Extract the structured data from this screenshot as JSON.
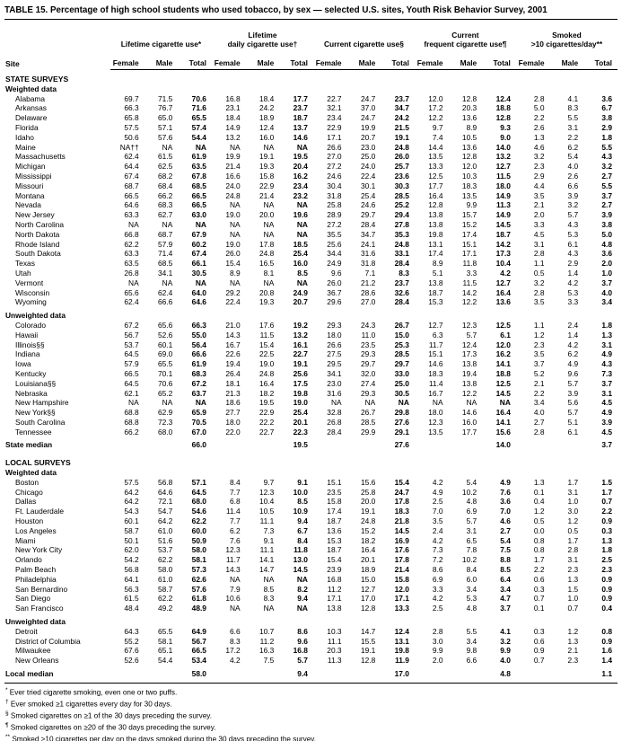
{
  "title": "TABLE 15. Percentage of high school students who used tobacco, by sex — selected U.S. sites, Youth Risk Behavior Survey, 2001",
  "header": {
    "site_label": "Site",
    "sub": [
      "Female",
      "Male",
      "Total"
    ],
    "groups": [
      {
        "line1": "",
        "line2": "Lifetime cigarette use*"
      },
      {
        "line1": "Lifetime",
        "line2": "daily cigarette use†"
      },
      {
        "line1": "",
        "line2": "Current cigarette use§"
      },
      {
        "line1": "Current",
        "line2": "frequent cigarette use¶"
      },
      {
        "line1": "Smoked",
        "line2": ">10 cigarettes/day**"
      }
    ]
  },
  "rows": [
    {
      "t": "sec",
      "site": "STATE SURVEYS"
    },
    {
      "t": "sub",
      "site": "Weighted data"
    },
    {
      "t": "d",
      "site": "Alabama",
      "v": [
        "69.7",
        "71.5",
        "70.6",
        "16.8",
        "18.4",
        "17.7",
        "22.7",
        "24.7",
        "23.7",
        "12.0",
        "12.8",
        "12.4",
        "2.8",
        "4.1",
        "3.6"
      ]
    },
    {
      "t": "d",
      "site": "Arkansas",
      "v": [
        "66.3",
        "76.7",
        "71.6",
        "23.1",
        "24.2",
        "23.7",
        "32.1",
        "37.0",
        "34.7",
        "17.2",
        "20.3",
        "18.8",
        "5.0",
        "8.3",
        "6.7"
      ]
    },
    {
      "t": "d",
      "site": "Delaware",
      "v": [
        "65.8",
        "65.0",
        "65.5",
        "18.4",
        "18.9",
        "18.7",
        "23.4",
        "24.7",
        "24.2",
        "12.2",
        "13.6",
        "12.8",
        "2.2",
        "5.5",
        "3.8"
      ]
    },
    {
      "t": "d",
      "site": "Florida",
      "v": [
        "57.5",
        "57.1",
        "57.4",
        "14.9",
        "12.4",
        "13.7",
        "22.9",
        "19.9",
        "21.5",
        "9.7",
        "8.9",
        "9.3",
        "2.6",
        "3.1",
        "2.9"
      ]
    },
    {
      "t": "d",
      "site": "Idaho",
      "v": [
        "50.6",
        "57.6",
        "54.4",
        "13.2",
        "16.0",
        "14.6",
        "17.1",
        "20.7",
        "19.1",
        "7.4",
        "10.5",
        "9.0",
        "1.3",
        "2.2",
        "1.8"
      ]
    },
    {
      "t": "d",
      "site": "Maine",
      "v": [
        "NA††",
        "NA",
        "NA",
        "NA",
        "NA",
        "NA",
        "26.6",
        "23.0",
        "24.8",
        "14.4",
        "13.6",
        "14.0",
        "4.6",
        "6.2",
        "5.5"
      ]
    },
    {
      "t": "d",
      "site": "Massachusetts",
      "v": [
        "62.4",
        "61.5",
        "61.9",
        "19.9",
        "19.1",
        "19.5",
        "27.0",
        "25.0",
        "26.0",
        "13.5",
        "12.8",
        "13.2",
        "3.2",
        "5.4",
        "4.3"
      ]
    },
    {
      "t": "d",
      "site": "Michigan",
      "v": [
        "64.4",
        "62.5",
        "63.5",
        "21.4",
        "19.3",
        "20.4",
        "27.2",
        "24.0",
        "25.7",
        "13.3",
        "12.0",
        "12.7",
        "2.3",
        "4.0",
        "3.2"
      ]
    },
    {
      "t": "d",
      "site": "Mississippi",
      "v": [
        "67.4",
        "68.2",
        "67.8",
        "16.6",
        "15.8",
        "16.2",
        "24.6",
        "22.4",
        "23.6",
        "12.5",
        "10.3",
        "11.5",
        "2.9",
        "2.6",
        "2.7"
      ]
    },
    {
      "t": "d",
      "site": "Missouri",
      "v": [
        "68.7",
        "68.4",
        "68.5",
        "24.0",
        "22.9",
        "23.4",
        "30.4",
        "30.1",
        "30.3",
        "17.7",
        "18.3",
        "18.0",
        "4.4",
        "6.6",
        "5.5"
      ]
    },
    {
      "t": "d",
      "site": "Montana",
      "v": [
        "66.5",
        "66.2",
        "66.5",
        "24.8",
        "21.4",
        "23.2",
        "31.8",
        "25.4",
        "28.5",
        "16.4",
        "13.5",
        "14.9",
        "3.5",
        "3.9",
        "3.7"
      ]
    },
    {
      "t": "d",
      "site": "Nevada",
      "v": [
        "64.6",
        "68.3",
        "66.5",
        "NA",
        "NA",
        "NA",
        "25.8",
        "24.6",
        "25.2",
        "12.8",
        "9.9",
        "11.3",
        "2.1",
        "3.2",
        "2.7"
      ]
    },
    {
      "t": "d",
      "site": "New Jersey",
      "v": [
        "63.3",
        "62.7",
        "63.0",
        "19.0",
        "20.0",
        "19.6",
        "28.9",
        "29.7",
        "29.4",
        "13.8",
        "15.7",
        "14.9",
        "2.0",
        "5.7",
        "3.9"
      ]
    },
    {
      "t": "d",
      "site": "North Carolina",
      "v": [
        "NA",
        "NA",
        "NA",
        "NA",
        "NA",
        "NA",
        "27.2",
        "28.4",
        "27.8",
        "13.8",
        "15.2",
        "14.5",
        "3.3",
        "4.3",
        "3.8"
      ]
    },
    {
      "t": "d",
      "site": "North Dakota",
      "v": [
        "66.8",
        "68.7",
        "67.9",
        "NA",
        "NA",
        "NA",
        "35.5",
        "34.7",
        "35.3",
        "19.8",
        "17.4",
        "18.7",
        "4.5",
        "5.3",
        "5.0"
      ]
    },
    {
      "t": "d",
      "site": "Rhode Island",
      "v": [
        "62.2",
        "57.9",
        "60.2",
        "19.0",
        "17.8",
        "18.5",
        "25.6",
        "24.1",
        "24.8",
        "13.1",
        "15.1",
        "14.2",
        "3.1",
        "6.1",
        "4.8"
      ]
    },
    {
      "t": "d",
      "site": "South Dakota",
      "v": [
        "63.3",
        "71.4",
        "67.4",
        "26.0",
        "24.8",
        "25.4",
        "34.4",
        "31.6",
        "33.1",
        "17.4",
        "17.1",
        "17.3",
        "2.8",
        "4.3",
        "3.6"
      ]
    },
    {
      "t": "d",
      "site": "Texas",
      "v": [
        "63.5",
        "68.5",
        "66.1",
        "15.4",
        "16.5",
        "16.0",
        "24.9",
        "31.8",
        "28.4",
        "8.9",
        "11.8",
        "10.4",
        "1.1",
        "2.9",
        "2.0"
      ]
    },
    {
      "t": "d",
      "site": "Utah",
      "v": [
        "26.8",
        "34.1",
        "30.5",
        "8.9",
        "8.1",
        "8.5",
        "9.6",
        "7.1",
        "8.3",
        "5.1",
        "3.3",
        "4.2",
        "0.5",
        "1.4",
        "1.0"
      ]
    },
    {
      "t": "d",
      "site": "Vermont",
      "v": [
        "NA",
        "NA",
        "NA",
        "NA",
        "NA",
        "NA",
        "26.0",
        "21.2",
        "23.7",
        "13.8",
        "11.5",
        "12.7",
        "3.2",
        "4.2",
        "3.7"
      ]
    },
    {
      "t": "d",
      "site": "Wisconsin",
      "v": [
        "65.6",
        "62.4",
        "64.0",
        "29.2",
        "20.8",
        "24.9",
        "36.7",
        "28.6",
        "32.6",
        "18.7",
        "14.2",
        "16.4",
        "2.8",
        "5.3",
        "4.0"
      ]
    },
    {
      "t": "d",
      "site": "Wyoming",
      "v": [
        "62.4",
        "66.6",
        "64.6",
        "22.4",
        "19.3",
        "20.7",
        "29.6",
        "27.0",
        "28.4",
        "15.3",
        "12.2",
        "13.6",
        "3.5",
        "3.3",
        "3.4"
      ]
    },
    {
      "t": "sub",
      "site": "Unweighted data"
    },
    {
      "t": "d",
      "site": "Colorado",
      "v": [
        "67.2",
        "65.6",
        "66.3",
        "21.0",
        "17.6",
        "19.2",
        "29.3",
        "24.3",
        "26.7",
        "12.7",
        "12.3",
        "12.5",
        "1.1",
        "2.4",
        "1.8"
      ]
    },
    {
      "t": "d",
      "site": "Hawaii",
      "v": [
        "56.7",
        "52.6",
        "55.0",
        "14.3",
        "11.5",
        "13.2",
        "18.0",
        "11.0",
        "15.0",
        "6.3",
        "5.7",
        "6.1",
        "1.2",
        "1.4",
        "1.3"
      ]
    },
    {
      "t": "d",
      "site": "Illinois§§",
      "v": [
        "53.7",
        "60.1",
        "56.4",
        "16.7",
        "15.4",
        "16.1",
        "26.6",
        "23.5",
        "25.3",
        "11.7",
        "12.4",
        "12.0",
        "2.3",
        "4.2",
        "3.1"
      ]
    },
    {
      "t": "d",
      "site": "Indiana",
      "v": [
        "64.5",
        "69.0",
        "66.6",
        "22.6",
        "22.5",
        "22.7",
        "27.5",
        "29.3",
        "28.5",
        "15.1",
        "17.3",
        "16.2",
        "3.5",
        "6.2",
        "4.9"
      ]
    },
    {
      "t": "d",
      "site": "Iowa",
      "v": [
        "57.9",
        "65.5",
        "61.9",
        "19.4",
        "19.0",
        "19.1",
        "29.5",
        "29.7",
        "29.7",
        "14.6",
        "13.8",
        "14.1",
        "3.7",
        "4.9",
        "4.3"
      ]
    },
    {
      "t": "d",
      "site": "Kentucky",
      "v": [
        "66.5",
        "70.1",
        "68.3",
        "26.4",
        "24.8",
        "25.6",
        "34.1",
        "32.0",
        "33.0",
        "18.3",
        "19.4",
        "18.8",
        "5.2",
        "9.6",
        "7.3"
      ]
    },
    {
      "t": "d",
      "site": "Louisiana§§",
      "v": [
        "64.5",
        "70.6",
        "67.2",
        "18.1",
        "16.4",
        "17.5",
        "23.0",
        "27.4",
        "25.0",
        "11.4",
        "13.8",
        "12.5",
        "2.1",
        "5.7",
        "3.7"
      ]
    },
    {
      "t": "d",
      "site": "Nebraska",
      "v": [
        "62.1",
        "65.2",
        "63.7",
        "21.3",
        "18.2",
        "19.8",
        "31.6",
        "29.3",
        "30.5",
        "16.7",
        "12.2",
        "14.5",
        "2.2",
        "3.9",
        "3.1"
      ]
    },
    {
      "t": "d",
      "site": "New Hampshire",
      "v": [
        "NA",
        "NA",
        "NA",
        "18.6",
        "19.5",
        "19.0",
        "NA",
        "NA",
        "NA",
        "NA",
        "NA",
        "NA",
        "3.4",
        "5.6",
        "4.5"
      ]
    },
    {
      "t": "d",
      "site": "New York§§",
      "v": [
        "68.8",
        "62.9",
        "65.9",
        "27.7",
        "22.9",
        "25.4",
        "32.8",
        "26.7",
        "29.8",
        "18.0",
        "14.6",
        "16.4",
        "4.0",
        "5.7",
        "4.9"
      ]
    },
    {
      "t": "d",
      "site": "South Carolina",
      "v": [
        "68.8",
        "72.3",
        "70.5",
        "18.0",
        "22.2",
        "20.1",
        "26.8",
        "28.5",
        "27.6",
        "12.3",
        "16.0",
        "14.1",
        "2.7",
        "5.1",
        "3.9"
      ]
    },
    {
      "t": "d",
      "site": "Tennessee",
      "v": [
        "66.2",
        "68.0",
        "67.0",
        "22.0",
        "22.7",
        "22.3",
        "28.4",
        "29.9",
        "29.1",
        "13.5",
        "17.7",
        "15.6",
        "2.8",
        "6.1",
        "4.5"
      ]
    },
    {
      "t": "med",
      "site": "State median",
      "v": [
        "66.0",
        "19.5",
        "27.6",
        "14.0",
        "3.7"
      ]
    },
    {
      "t": "sec",
      "site": "LOCAL SURVEYS"
    },
    {
      "t": "sub",
      "site": "Weighted data"
    },
    {
      "t": "d",
      "site": "Boston",
      "v": [
        "57.5",
        "56.8",
        "57.1",
        "8.4",
        "9.7",
        "9.1",
        "15.1",
        "15.6",
        "15.4",
        "4.2",
        "5.4",
        "4.9",
        "1.3",
        "1.7",
        "1.5"
      ]
    },
    {
      "t": "d",
      "site": "Chicago",
      "v": [
        "64.2",
        "64.6",
        "64.5",
        "7.7",
        "12.3",
        "10.0",
        "23.5",
        "25.8",
        "24.7",
        "4.9",
        "10.2",
        "7.6",
        "0.1",
        "3.1",
        "1.7"
      ]
    },
    {
      "t": "d",
      "site": "Dallas",
      "v": [
        "64.2",
        "72.1",
        "68.0",
        "6.8",
        "10.4",
        "8.5",
        "15.8",
        "20.0",
        "17.8",
        "2.5",
        "4.8",
        "3.6",
        "0.4",
        "1.0",
        "0.7"
      ]
    },
    {
      "t": "d",
      "site": "Ft. Lauderdale",
      "v": [
        "54.3",
        "54.7",
        "54.6",
        "11.4",
        "10.5",
        "10.9",
        "17.4",
        "19.1",
        "18.3",
        "7.0",
        "6.9",
        "7.0",
        "1.2",
        "3.0",
        "2.2"
      ]
    },
    {
      "t": "d",
      "site": "Houston",
      "v": [
        "60.1",
        "64.2",
        "62.2",
        "7.7",
        "11.1",
        "9.4",
        "18.7",
        "24.8",
        "21.8",
        "3.5",
        "5.7",
        "4.6",
        "0.5",
        "1.2",
        "0.9"
      ]
    },
    {
      "t": "d",
      "site": "Los Angeles",
      "v": [
        "58.7",
        "61.0",
        "60.0",
        "6.2",
        "7.3",
        "6.7",
        "13.6",
        "15.2",
        "14.5",
        "2.4",
        "3.1",
        "2.7",
        "0.0",
        "0.5",
        "0.3"
      ]
    },
    {
      "t": "d",
      "site": "Miami",
      "v": [
        "50.1",
        "51.6",
        "50.9",
        "7.6",
        "9.1",
        "8.4",
        "15.3",
        "18.2",
        "16.9",
        "4.2",
        "6.5",
        "5.4",
        "0.8",
        "1.7",
        "1.3"
      ]
    },
    {
      "t": "d",
      "site": "New York City",
      "v": [
        "62.0",
        "53.7",
        "58.0",
        "12.3",
        "11.1",
        "11.8",
        "18.7",
        "16.4",
        "17.6",
        "7.3",
        "7.8",
        "7.5",
        "0.8",
        "2.8",
        "1.8"
      ]
    },
    {
      "t": "d",
      "site": "Orlando",
      "v": [
        "54.2",
        "62.2",
        "58.1",
        "11.7",
        "14.1",
        "13.0",
        "15.4",
        "20.1",
        "17.8",
        "7.2",
        "10.2",
        "8.8",
        "1.7",
        "3.1",
        "2.5"
      ]
    },
    {
      "t": "d",
      "site": "Palm Beach",
      "v": [
        "56.8",
        "58.0",
        "57.3",
        "14.3",
        "14.7",
        "14.5",
        "23.9",
        "18.9",
        "21.4",
        "8.6",
        "8.4",
        "8.5",
        "2.2",
        "2.3",
        "2.3"
      ]
    },
    {
      "t": "d",
      "site": "Philadelphia",
      "v": [
        "64.1",
        "61.0",
        "62.6",
        "NA",
        "NA",
        "NA",
        "16.8",
        "15.0",
        "15.8",
        "6.9",
        "6.0",
        "6.4",
        "0.6",
        "1.3",
        "0.9"
      ]
    },
    {
      "t": "d",
      "site": "San Bernardino",
      "v": [
        "56.3",
        "58.7",
        "57.6",
        "7.9",
        "8.5",
        "8.2",
        "11.2",
        "12.7",
        "12.0",
        "3.3",
        "3.4",
        "3.4",
        "0.3",
        "1.5",
        "0.9"
      ]
    },
    {
      "t": "d",
      "site": "San Diego",
      "v": [
        "61.5",
        "62.2",
        "61.8",
        "10.6",
        "8.3",
        "9.4",
        "17.1",
        "17.0",
        "17.1",
        "4.2",
        "5.3",
        "4.7",
        "0.7",
        "1.0",
        "0.9"
      ]
    },
    {
      "t": "d",
      "site": "San Francisco",
      "v": [
        "48.4",
        "49.2",
        "48.9",
        "NA",
        "NA",
        "NA",
        "13.8",
        "12.8",
        "13.3",
        "2.5",
        "4.8",
        "3.7",
        "0.1",
        "0.7",
        "0.4"
      ]
    },
    {
      "t": "sub",
      "site": "Unweighted data"
    },
    {
      "t": "d",
      "site": "Detroit",
      "v": [
        "64.3",
        "65.5",
        "64.9",
        "6.6",
        "10.7",
        "8.6",
        "10.3",
        "14.7",
        "12.4",
        "2.8",
        "5.5",
        "4.1",
        "0.3",
        "1.2",
        "0.8"
      ]
    },
    {
      "t": "d",
      "site": "District of Columbia",
      "v": [
        "55.2",
        "58.1",
        "56.7",
        "8.3",
        "11.2",
        "9.6",
        "11.1",
        "15.5",
        "13.1",
        "3.0",
        "3.4",
        "3.2",
        "0.6",
        "1.3",
        "0.9"
      ]
    },
    {
      "t": "d",
      "site": "Milwaukee",
      "v": [
        "67.6",
        "65.1",
        "66.5",
        "17.2",
        "16.3",
        "16.8",
        "20.3",
        "19.1",
        "19.8",
        "9.9",
        "9.8",
        "9.9",
        "0.9",
        "2.1",
        "1.6"
      ]
    },
    {
      "t": "d",
      "site": "New Orleans",
      "v": [
        "52.6",
        "54.4",
        "53.4",
        "4.2",
        "7.5",
        "5.7",
        "11.3",
        "12.8",
        "11.9",
        "2.0",
        "6.6",
        "4.0",
        "0.7",
        "2.3",
        "1.4"
      ]
    },
    {
      "t": "med",
      "site": "Local median",
      "v": [
        "58.0",
        "9.4",
        "17.0",
        "4.8",
        "1.1"
      ]
    }
  ],
  "footnotes": [
    {
      "marker": "*",
      "text": "Ever tried cigarette smoking, even one or two puffs."
    },
    {
      "marker": "†",
      "text": "Ever smoked ≥1 cigarettes every day for 30 days."
    },
    {
      "marker": "§",
      "text": "Smoked cigarettes on ≥1 of the 30 days preceding the survey."
    },
    {
      "marker": "¶",
      "text": "Smoked cigarettes on ≥20 of the 30 days preceding the survey."
    },
    {
      "marker": "**",
      "text": "Smoked >10 cigarettes per day on the days smoked during the 30 days preceding the survey."
    },
    {
      "marker": "††",
      "text": "Not available."
    },
    {
      "marker": "§§",
      "text": "Survey did not include students from one of the state's large school districts."
    }
  ]
}
